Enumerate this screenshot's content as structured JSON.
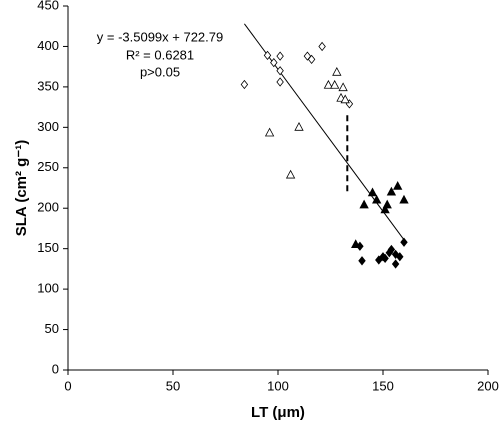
{
  "chart_data": {
    "type": "scatter",
    "xlabel": "LT (μm)",
    "ylabel": "SLA (cm² g⁻¹)",
    "annotations": [
      "y = -3.5099x + 722.79",
      "R² = 0.6281",
      "p>0.05"
    ],
    "xlim": [
      0,
      200
    ],
    "xticks": [
      0,
      50,
      100,
      150,
      200
    ],
    "ylim": [
      0,
      450
    ],
    "yticks": [
      0,
      50,
      100,
      150,
      200,
      250,
      300,
      350,
      400,
      450
    ],
    "series": [
      {
        "marker": "diamond",
        "filled": false,
        "color": "#000000",
        "x": [
          84,
          95,
          98,
          101,
          101,
          101,
          121,
          114,
          116,
          134
        ],
        "y": [
          353,
          389,
          380,
          388,
          370,
          356,
          400,
          388,
          384,
          329
        ]
      },
      {
        "marker": "triangle",
        "filled": false,
        "color": "#000000",
        "x": [
          96,
          106,
          110,
          124,
          128,
          127,
          130,
          131,
          132
        ],
        "y": [
          293,
          241,
          300,
          352,
          368,
          352,
          336,
          349,
          334
        ]
      },
      {
        "marker": "triangle",
        "filled": true,
        "color": "#000000",
        "x": [
          137,
          141,
          145,
          147,
          151,
          152,
          154,
          157,
          160
        ],
        "y": [
          155,
          204,
          219,
          210,
          198,
          204,
          220,
          227,
          210
        ]
      },
      {
        "marker": "diamond",
        "filled": true,
        "color": "#000000",
        "x": [
          139,
          140,
          148,
          150,
          151,
          153,
          154,
          156,
          156,
          158,
          160
        ],
        "y": [
          153,
          135,
          136,
          140,
          138,
          145,
          149,
          143,
          131,
          140,
          158
        ]
      }
    ],
    "fit_line": {
      "x": [
        84,
        160
      ],
      "y": [
        428,
        161
      ]
    },
    "divider": {
      "x": [
        133,
        133
      ],
      "y": [
        315,
        218
      ]
    }
  }
}
